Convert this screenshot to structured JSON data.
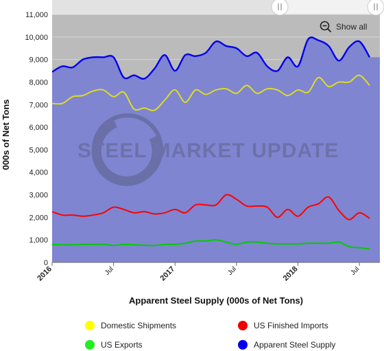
{
  "chart_data": {
    "type": "line",
    "title": "",
    "xlabel": "Apparent Steel Supply (000s of Net Tons)",
    "ylabel": "000s of Net Tons",
    "ylim": [
      0,
      11000
    ],
    "yticks": [
      "0",
      "1,000",
      "2,000",
      "3,000",
      "4,000",
      "5,000",
      "6,000",
      "7,000",
      "8,000",
      "9,000",
      "10,000",
      "11,000"
    ],
    "xtick_labels": [
      "2016",
      "Jul",
      "2017",
      "Jul",
      "2018",
      "Jul"
    ],
    "xlim": [
      "2016-01",
      "2018-08"
    ],
    "x": [
      "2016-01",
      "2016-02",
      "2016-03",
      "2016-04",
      "2016-05",
      "2016-06",
      "2016-07",
      "2016-08",
      "2016-09",
      "2016-10",
      "2016-11",
      "2016-12",
      "2017-01",
      "2017-02",
      "2017-03",
      "2017-04",
      "2017-05",
      "2017-06",
      "2017-07",
      "2017-08",
      "2017-09",
      "2017-10",
      "2017-11",
      "2017-12",
      "2018-01",
      "2018-02",
      "2018-03",
      "2018-04",
      "2018-05",
      "2018-06",
      "2018-07",
      "2018-08"
    ],
    "series": [
      {
        "name": "Apparent Steel Supply",
        "color": "#0000ee",
        "values": [
          8450,
          8700,
          8650,
          9000,
          9100,
          9100,
          9100,
          8200,
          8300,
          8150,
          8600,
          9200,
          8500,
          9200,
          9150,
          9300,
          9800,
          9600,
          9500,
          9150,
          9300,
          8700,
          8500,
          9100,
          8700,
          9900,
          9850,
          9600,
          8950,
          9550,
          9800,
          9100
        ],
        "fill": true
      },
      {
        "name": "Domestic Shipments",
        "color": "#dddd22",
        "values": [
          7050,
          7050,
          7350,
          7400,
          7600,
          7650,
          7350,
          7550,
          6800,
          6850,
          6750,
          7200,
          7650,
          7100,
          7650,
          7450,
          7650,
          7700,
          7500,
          7850,
          7500,
          7700,
          7650,
          7400,
          7650,
          7550,
          8200,
          7800,
          8000,
          8000,
          8300,
          7850
        ]
      },
      {
        "name": "US Finished Imports",
        "color": "#ff0000",
        "values": [
          2250,
          2100,
          2100,
          2050,
          2100,
          2200,
          2450,
          2350,
          2200,
          2250,
          2150,
          2200,
          2350,
          2200,
          2550,
          2550,
          2550,
          3000,
          2800,
          2500,
          2500,
          2450,
          2000,
          2350,
          2050,
          2450,
          2600,
          2900,
          2300,
          1900,
          2200,
          1950
        ]
      },
      {
        "name": "US Exports",
        "color": "#00cc00",
        "values": [
          800,
          780,
          780,
          800,
          800,
          800,
          750,
          800,
          780,
          760,
          750,
          800,
          800,
          850,
          950,
          950,
          1000,
          900,
          800,
          900,
          900,
          850,
          820,
          820,
          820,
          850,
          850,
          850,
          900,
          700,
          650,
          600
        ]
      }
    ],
    "legend_position": "bottom",
    "grid": true,
    "plot_background": "#bbbbbb",
    "fill_color": "#7f85d0"
  },
  "legend": [
    {
      "label": "Domestic Shipments",
      "color": "#ffff00"
    },
    {
      "label": "US Finished Imports",
      "color": "#ee0000"
    },
    {
      "label": "US Exports",
      "color": "#22ee22"
    },
    {
      "label": "Apparent Steel Supply",
      "color": "#0000ee"
    }
  ],
  "watermark": "STEEL MARKET UPDATE",
  "show_all_label": "Show all"
}
